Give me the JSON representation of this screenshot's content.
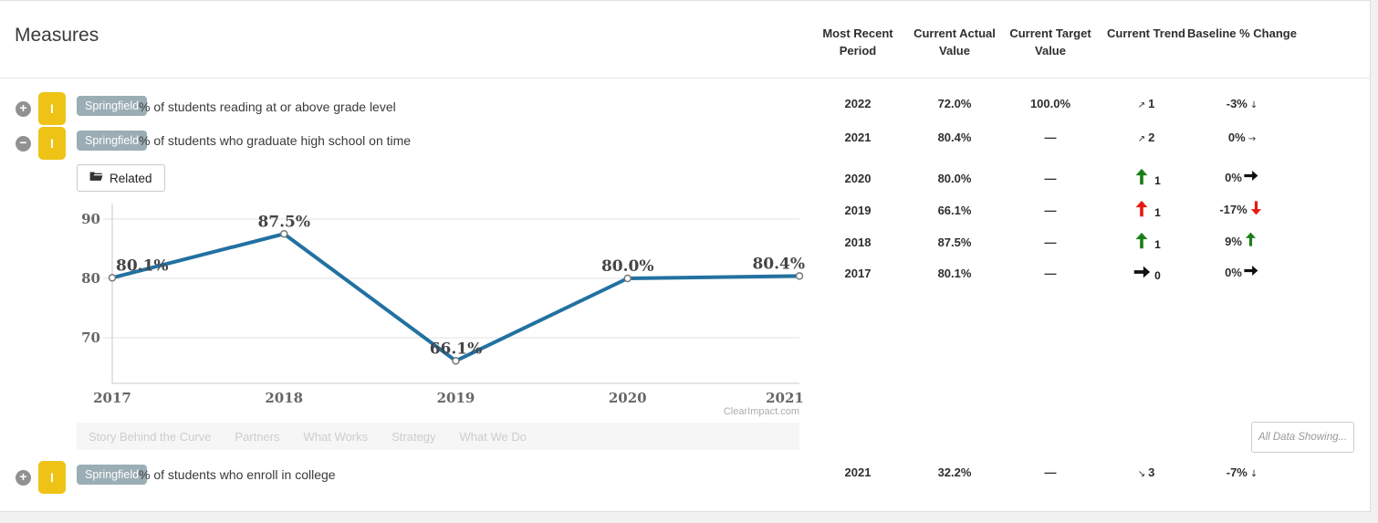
{
  "header": {
    "title": "Measures",
    "columns": [
      "Most Recent Period",
      "Current Actual Value",
      "Current Target Value",
      "Current Trend",
      "Baseline % Change"
    ]
  },
  "measures": [
    {
      "expander": "+",
      "icon_label": "I",
      "tag": "Springfield",
      "name": "% of students reading at or above grade level",
      "period": "2022",
      "actual": "72.0%",
      "target": "100.0%",
      "trend_arrow": "↗",
      "trend_count": "1",
      "baseline_value": "-3%",
      "baseline_arrow": "↓"
    },
    {
      "expander": "−",
      "icon_label": "I",
      "tag": "Springfield",
      "name": "% of students who graduate high school on time",
      "period": "2021",
      "actual": "80.4%",
      "target": "—",
      "trend_arrow": "↗",
      "trend_count": "2",
      "baseline_value": "0%",
      "baseline_arrow": "→"
    },
    {
      "expander": "+",
      "icon_label": "I",
      "tag": "Springfield",
      "name": "% of students who enroll in college",
      "period": "2021",
      "actual": "32.2%",
      "target": "—",
      "trend_arrow": "↘",
      "trend_count": "3",
      "baseline_value": "-7%",
      "baseline_arrow": "↓"
    }
  ],
  "detail": {
    "related_label": "Related",
    "tabs": [
      "Story Behind the Curve",
      "Partners",
      "What Works",
      "Strategy",
      "What We Do"
    ],
    "all_data_label": "All Data Showing...",
    "history": [
      {
        "period": "2020",
        "actual": "80.0%",
        "target": "—",
        "trend_dir": "up",
        "trend_color": "#1a7f1a",
        "trend_count": "1",
        "baseline_value": "0%",
        "baseline_dir": "right",
        "baseline_color": "#111111"
      },
      {
        "period": "2019",
        "actual": "66.1%",
        "target": "—",
        "trend_dir": "up",
        "trend_color": "#e8190f",
        "trend_count": "1",
        "baseline_value": "-17%",
        "baseline_dir": "down",
        "baseline_color": "#e8190f"
      },
      {
        "period": "2018",
        "actual": "87.5%",
        "target": "—",
        "trend_dir": "up",
        "trend_color": "#1a7f1a",
        "trend_count": "1",
        "baseline_value": "9%",
        "baseline_dir": "up",
        "baseline_color": "#1a7f1a"
      },
      {
        "period": "2017",
        "actual": "80.1%",
        "target": "—",
        "trend_dir": "right",
        "trend_color": "#111111",
        "trend_count": "0",
        "baseline_value": "0%",
        "baseline_dir": "right",
        "baseline_color": "#111111"
      }
    ]
  },
  "chart_data": {
    "type": "line",
    "x": [
      "2017",
      "2018",
      "2019",
      "2020",
      "2021"
    ],
    "values": [
      80.1,
      87.5,
      66.1,
      80.0,
      80.4
    ],
    "point_labels": [
      "80.1%",
      "87.5%",
      "66.1%",
      "80.0%",
      "80.4%"
    ],
    "yticks": [
      90,
      80,
      70
    ],
    "ylim": [
      61,
      93.5
    ],
    "grid": true,
    "legend": "none",
    "line_color": "#2271a1",
    "marker": "open-circle",
    "watermark": "ClearImpact.com"
  },
  "colors": {
    "measure_icon_bg": "#eec315",
    "tag_bg": "#9badb5",
    "line": "#2271a1",
    "trend_green": "#1a7f1a",
    "trend_red": "#e8190f",
    "trend_black": "#111111"
  }
}
